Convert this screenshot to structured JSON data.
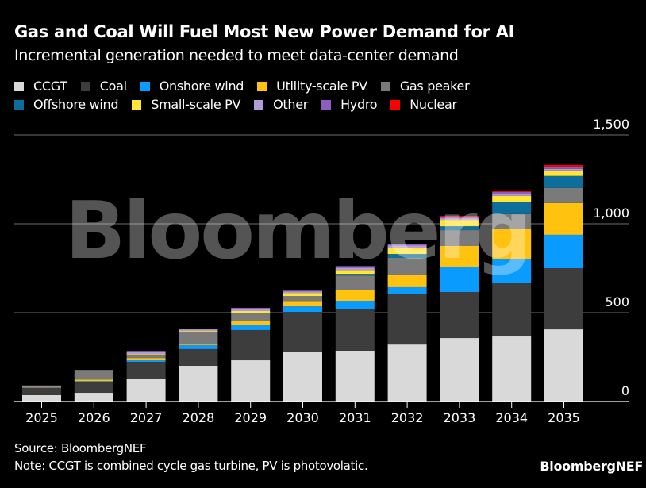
{
  "chart_data": {
    "type": "bar",
    "stacked": true,
    "title": "Gas and Coal Will Fuel Most New Power Demand for AI",
    "subtitle": "Incremental generation needed to meet data-center demand",
    "xlabel": "",
    "ylabel": "",
    "ylim": [
      0,
      1500
    ],
    "yticks": [
      0,
      500,
      1000,
      1500
    ],
    "ytick_labels": [
      "0",
      "500",
      "1,000",
      "1,500"
    ],
    "grid": true,
    "legend_position": "top-left",
    "categories": [
      "2025",
      "2026",
      "2027",
      "2028",
      "2029",
      "2030",
      "2031",
      "2032",
      "2033",
      "2034",
      "2035"
    ],
    "series": [
      {
        "name": "CCGT",
        "color": "#d9d9d9",
        "values": [
          36,
          49,
          125,
          201,
          232,
          281,
          286,
          321,
          357,
          366,
          406
        ]
      },
      {
        "name": "Coal",
        "color": "#3d3d3d",
        "values": [
          40,
          62,
          98,
          94,
          170,
          223,
          232,
          286,
          259,
          299,
          344
        ]
      },
      {
        "name": "Onshore wind",
        "color": "#0a9bff",
        "values": [
          0,
          4,
          9,
          22,
          27,
          31,
          49,
          36,
          143,
          134,
          188
        ]
      },
      {
        "name": "Utility-scale PV",
        "color": "#ffc20e",
        "values": [
          0,
          9,
          13,
          4,
          22,
          31,
          62,
          71,
          116,
          170,
          179
        ]
      },
      {
        "name": "Gas peaker",
        "color": "#7a7a7a",
        "values": [
          9,
          54,
          18,
          67,
          45,
          27,
          80,
          94,
          89,
          85,
          85
        ]
      },
      {
        "name": "Offshore wind",
        "color": "#0d6e9b",
        "values": [
          0,
          0,
          0,
          0,
          0,
          0,
          9,
          22,
          22,
          67,
          67
        ]
      },
      {
        "name": "Small-scale PV",
        "color": "#ffe536",
        "values": [
          1,
          0,
          4,
          9,
          13,
          18,
          22,
          36,
          36,
          36,
          31
        ]
      },
      {
        "name": "Other",
        "color": "#b19cd9",
        "values": [
          4,
          0,
          13,
          9,
          9,
          9,
          13,
          13,
          9,
          9,
          9
        ]
      },
      {
        "name": "Hydro",
        "color": "#8e5bbf",
        "values": [
          0,
          0,
          5,
          4,
          9,
          4,
          9,
          9,
          9,
          13,
          13
        ]
      },
      {
        "name": "Nuclear",
        "color": "#ff0000",
        "values": [
          0,
          0,
          0,
          0,
          0,
          0,
          0,
          0,
          4,
          4,
          9
        ]
      }
    ],
    "watermark": "Bloomberg"
  },
  "footer": {
    "source": "Source: BloombergNEF",
    "note": "Note: CCGT is combined cycle gas turbine, PV is photovolatic.",
    "brand": "BloombergNEF"
  }
}
